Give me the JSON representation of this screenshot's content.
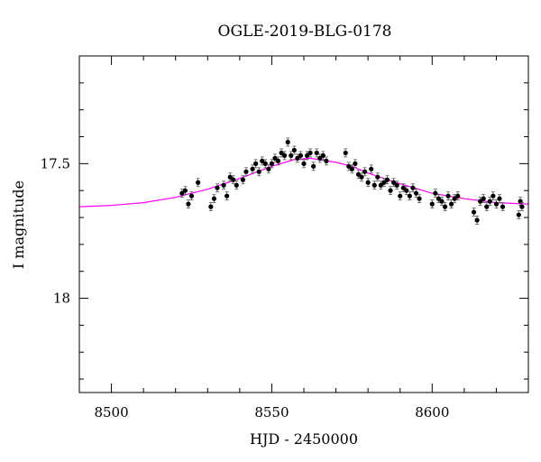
{
  "chart_data": {
    "type": "scatter",
    "title": "OGLE-2019-BLG-0178",
    "xlabel": "HJD - 2450000",
    "ylabel": "I magnitude",
    "xlim": [
      8490,
      8630
    ],
    "ylim": [
      18.35,
      17.1
    ],
    "y_inverted": true,
    "xticks": [
      {
        "value": 8500,
        "label": "8500"
      },
      {
        "value": 8550,
        "label": "8550"
      },
      {
        "value": 8600,
        "label": "8600"
      }
    ],
    "yticks": [
      {
        "value": 17.5,
        "label": "17.5"
      },
      {
        "value": 18,
        "label": "18"
      }
    ],
    "grid": false,
    "colors": {
      "points": "#000000",
      "errorbars": "#555555",
      "model": "#ff00ff"
    },
    "series": [
      {
        "kind": "points_with_errorbars",
        "points": [
          [
            8522.0,
            17.61,
            0.015
          ],
          [
            8523.0,
            17.6,
            0.015
          ],
          [
            8524.0,
            17.65,
            0.015
          ],
          [
            8525.0,
            17.62,
            0.015
          ],
          [
            8527.0,
            17.57,
            0.015
          ],
          [
            8531.0,
            17.66,
            0.015
          ],
          [
            8532.0,
            17.63,
            0.015
          ],
          [
            8533.0,
            17.59,
            0.015
          ],
          [
            8535.0,
            17.58,
            0.015
          ],
          [
            8536.0,
            17.62,
            0.015
          ],
          [
            8537.0,
            17.55,
            0.015
          ],
          [
            8538.0,
            17.56,
            0.015
          ],
          [
            8539.0,
            17.58,
            0.015
          ],
          [
            8541.0,
            17.56,
            0.015
          ],
          [
            8542.0,
            17.53,
            0.015
          ],
          [
            8544.0,
            17.52,
            0.015
          ],
          [
            8545.0,
            17.5,
            0.015
          ],
          [
            8546.0,
            17.53,
            0.015
          ],
          [
            8547.0,
            17.49,
            0.015
          ],
          [
            8548.0,
            17.5,
            0.015
          ],
          [
            8549.0,
            17.52,
            0.015
          ],
          [
            8550.0,
            17.5,
            0.015
          ],
          [
            8551.0,
            17.48,
            0.015
          ],
          [
            8552.0,
            17.49,
            0.015
          ],
          [
            8553.0,
            17.46,
            0.015
          ],
          [
            8554.0,
            17.47,
            0.015
          ],
          [
            8555.0,
            17.42,
            0.015
          ],
          [
            8556.0,
            17.47,
            0.015
          ],
          [
            8557.0,
            17.45,
            0.015
          ],
          [
            8558.0,
            17.48,
            0.015
          ],
          [
            8559.0,
            17.47,
            0.015
          ],
          [
            8560.0,
            17.5,
            0.015
          ],
          [
            8561.0,
            17.47,
            0.015
          ],
          [
            8562.0,
            17.46,
            0.015
          ],
          [
            8563.0,
            17.51,
            0.015
          ],
          [
            8564.0,
            17.46,
            0.015
          ],
          [
            8565.0,
            17.48,
            0.015
          ],
          [
            8566.0,
            17.47,
            0.015
          ],
          [
            8567.0,
            17.49,
            0.015
          ],
          [
            8573.0,
            17.46,
            0.015
          ],
          [
            8574.0,
            17.51,
            0.015
          ],
          [
            8575.0,
            17.52,
            0.015
          ],
          [
            8576.0,
            17.5,
            0.015
          ],
          [
            8577.0,
            17.54,
            0.015
          ],
          [
            8578.0,
            17.55,
            0.015
          ],
          [
            8579.0,
            17.53,
            0.015
          ],
          [
            8580.0,
            17.57,
            0.015
          ],
          [
            8581.0,
            17.52,
            0.015
          ],
          [
            8582.0,
            17.58,
            0.015
          ],
          [
            8583.0,
            17.55,
            0.015
          ],
          [
            8584.0,
            17.58,
            0.015
          ],
          [
            8585.0,
            17.57,
            0.015
          ],
          [
            8586.0,
            17.56,
            0.015
          ],
          [
            8587.0,
            17.6,
            0.015
          ],
          [
            8588.0,
            17.57,
            0.015
          ],
          [
            8589.0,
            17.58,
            0.015
          ],
          [
            8590.0,
            17.62,
            0.015
          ],
          [
            8591.0,
            17.59,
            0.015
          ],
          [
            8592.0,
            17.6,
            0.015
          ],
          [
            8593.0,
            17.62,
            0.015
          ],
          [
            8594.0,
            17.59,
            0.015
          ],
          [
            8595.0,
            17.61,
            0.015
          ],
          [
            8596.0,
            17.63,
            0.015
          ],
          [
            8600.0,
            17.65,
            0.015
          ],
          [
            8601.0,
            17.61,
            0.015
          ],
          [
            8602.0,
            17.63,
            0.015
          ],
          [
            8603.0,
            17.64,
            0.015
          ],
          [
            8604.0,
            17.66,
            0.015
          ],
          [
            8605.0,
            17.62,
            0.015
          ],
          [
            8606.0,
            17.65,
            0.015
          ],
          [
            8607.0,
            17.63,
            0.015
          ],
          [
            8608.0,
            17.62,
            0.015
          ],
          [
            8613.0,
            17.68,
            0.015
          ],
          [
            8614.0,
            17.71,
            0.015
          ],
          [
            8615.0,
            17.64,
            0.015
          ],
          [
            8616.0,
            17.63,
            0.015
          ],
          [
            8617.0,
            17.66,
            0.015
          ],
          [
            8618.0,
            17.64,
            0.015
          ],
          [
            8619.0,
            17.62,
            0.015
          ],
          [
            8620.0,
            17.65,
            0.015
          ],
          [
            8621.0,
            17.63,
            0.015
          ],
          [
            8622.0,
            17.66,
            0.015
          ],
          [
            8627.0,
            17.69,
            0.015
          ],
          [
            8627.5,
            17.64,
            0.015
          ],
          [
            8628.0,
            17.66,
            0.015
          ]
        ]
      },
      {
        "kind": "model_curve",
        "points": [
          [
            8490,
            17.66
          ],
          [
            8500,
            17.655
          ],
          [
            8510,
            17.645
          ],
          [
            8520,
            17.625
          ],
          [
            8530,
            17.595
          ],
          [
            8540,
            17.555
          ],
          [
            8550,
            17.51
          ],
          [
            8557,
            17.485
          ],
          [
            8562,
            17.48
          ],
          [
            8570,
            17.495
          ],
          [
            8575,
            17.51
          ],
          [
            8580,
            17.535
          ],
          [
            8590,
            17.575
          ],
          [
            8600,
            17.61
          ],
          [
            8610,
            17.63
          ],
          [
            8620,
            17.645
          ],
          [
            8630,
            17.65
          ]
        ]
      }
    ]
  }
}
